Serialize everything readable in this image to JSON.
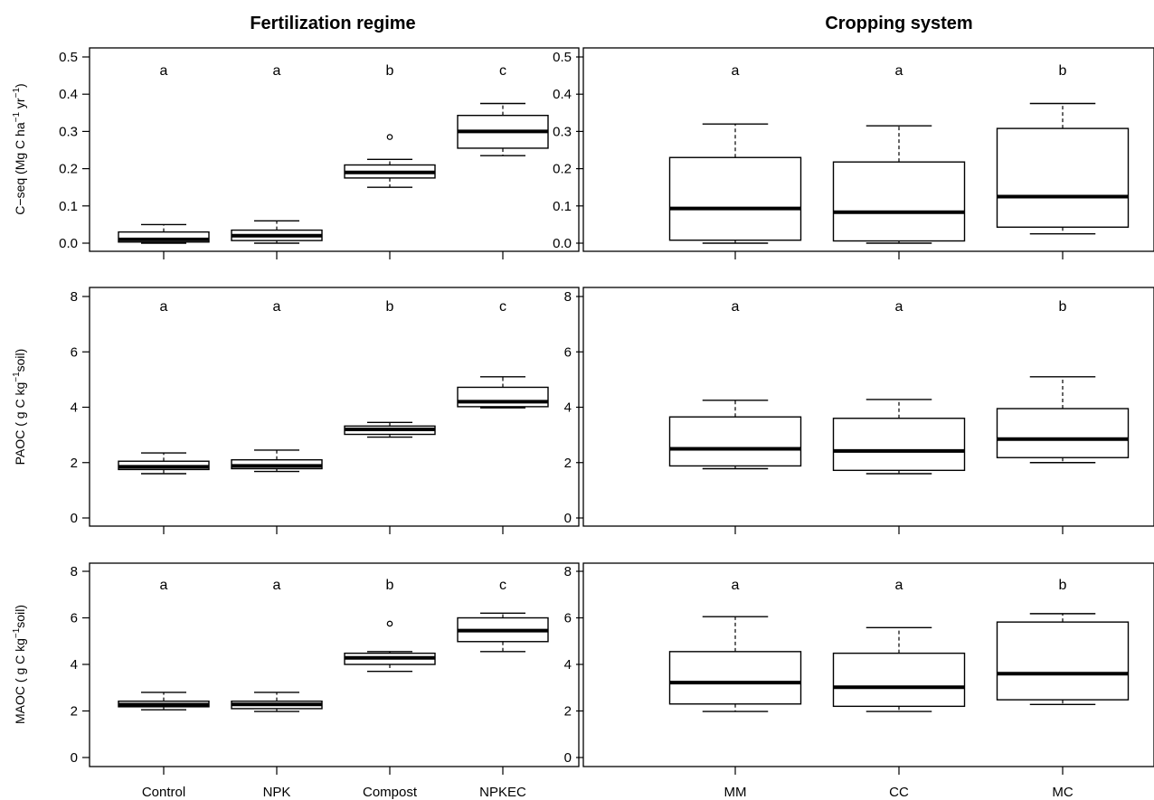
{
  "titles": {
    "left": "Fertilization regime",
    "right": "Cropping system"
  },
  "ylabels": {
    "cseq": {
      "main": "C−seq (Mg C ha",
      "sup1": "−1",
      "mid": " yr",
      "sup2": "−1",
      "end": ")"
    },
    "paoc": {
      "main": "PAOC ( g C kg",
      "sup1": "−1",
      "end": "soil)"
    },
    "maoc": {
      "main": "MAOC ( g C kg",
      "sup1": "−1",
      "end": "soil)"
    }
  },
  "chart_data": [
    {
      "type": "box",
      "id": "cseq-fert",
      "ylim": [
        0,
        0.5
      ],
      "yticks": [
        "0.0",
        "0.1",
        "0.2",
        "0.3",
        "0.4",
        "0.5"
      ],
      "categories": [
        "Control",
        "NPK",
        "Compost",
        "NPKEC"
      ],
      "letters": [
        "a",
        "a",
        "b",
        "c"
      ],
      "boxes": [
        {
          "min": 0.0,
          "q1": 0.003,
          "median": 0.01,
          "q3": 0.03,
          "max": 0.05
        },
        {
          "min": 0.0,
          "q1": 0.007,
          "median": 0.02,
          "q3": 0.035,
          "max": 0.06
        },
        {
          "min": 0.15,
          "q1": 0.175,
          "median": 0.19,
          "q3": 0.21,
          "max": 0.225,
          "outliers": [
            0.285
          ]
        },
        {
          "min": 0.235,
          "q1": 0.255,
          "median": 0.3,
          "q3": 0.343,
          "max": 0.375
        }
      ]
    },
    {
      "type": "box",
      "id": "cseq-crop",
      "ylim": [
        0,
        0.5
      ],
      "yticks": [
        "0.0",
        "0.1",
        "0.2",
        "0.3",
        "0.4",
        "0.5"
      ],
      "categories": [
        "MM",
        "CC",
        "MC"
      ],
      "letters": [
        "a",
        "a",
        "b"
      ],
      "boxes": [
        {
          "min": 0.0,
          "q1": 0.008,
          "median": 0.093,
          "q3": 0.23,
          "max": 0.32
        },
        {
          "min": 0.0,
          "q1": 0.006,
          "median": 0.083,
          "q3": 0.218,
          "max": 0.315
        },
        {
          "min": 0.025,
          "q1": 0.043,
          "median": 0.125,
          "q3": 0.308,
          "max": 0.375
        }
      ]
    },
    {
      "type": "box",
      "id": "paoc-fert",
      "ylim": [
        0,
        8
      ],
      "yticks": [
        "0",
        "2",
        "4",
        "6",
        "8"
      ],
      "categories": [
        "Control",
        "NPK",
        "Compost",
        "NPKEC"
      ],
      "letters": [
        "a",
        "a",
        "b",
        "c"
      ],
      "boxes": [
        {
          "min": 1.6,
          "q1": 1.75,
          "median": 1.85,
          "q3": 2.05,
          "max": 2.35
        },
        {
          "min": 1.68,
          "q1": 1.78,
          "median": 1.88,
          "q3": 2.1,
          "max": 2.45
        },
        {
          "min": 2.92,
          "q1": 3.02,
          "median": 3.2,
          "q3": 3.32,
          "max": 3.45
        },
        {
          "min": 3.98,
          "q1": 4.02,
          "median": 4.2,
          "q3": 4.72,
          "max": 5.1
        }
      ]
    },
    {
      "type": "box",
      "id": "paoc-crop",
      "ylim": [
        0,
        8
      ],
      "yticks": [
        "0",
        "2",
        "4",
        "6",
        "8"
      ],
      "categories": [
        "MM",
        "CC",
        "MC"
      ],
      "letters": [
        "a",
        "a",
        "b"
      ],
      "boxes": [
        {
          "min": 1.78,
          "q1": 1.88,
          "median": 2.5,
          "q3": 3.65,
          "max": 4.25
        },
        {
          "min": 1.6,
          "q1": 1.72,
          "median": 2.42,
          "q3": 3.6,
          "max": 4.28
        },
        {
          "min": 2.0,
          "q1": 2.18,
          "median": 2.85,
          "q3": 3.95,
          "max": 5.1
        }
      ]
    },
    {
      "type": "box",
      "id": "maoc-fert",
      "ylim": [
        0,
        8
      ],
      "yticks": [
        "0",
        "2",
        "4",
        "6",
        "8"
      ],
      "categories": [
        "Control",
        "NPK",
        "Compost",
        "NPKEC"
      ],
      "letters": [
        "a",
        "a",
        "b",
        "c"
      ],
      "boxes": [
        {
          "min": 2.05,
          "q1": 2.18,
          "median": 2.27,
          "q3": 2.42,
          "max": 2.8
        },
        {
          "min": 1.98,
          "q1": 2.1,
          "median": 2.28,
          "q3": 2.42,
          "max": 2.8
        },
        {
          "min": 3.7,
          "q1": 4.0,
          "median": 4.28,
          "q3": 4.48,
          "max": 4.55,
          "outliers": [
            5.75
          ]
        },
        {
          "min": 4.55,
          "q1": 4.98,
          "median": 5.45,
          "q3": 6.0,
          "max": 6.2
        }
      ]
    },
    {
      "type": "box",
      "id": "maoc-crop",
      "ylim": [
        0,
        8
      ],
      "yticks": [
        "0",
        "2",
        "4",
        "6",
        "8"
      ],
      "categories": [
        "MM",
        "CC",
        "MC"
      ],
      "letters": [
        "a",
        "a",
        "b"
      ],
      "boxes": [
        {
          "min": 1.98,
          "q1": 2.3,
          "median": 3.22,
          "q3": 4.55,
          "max": 6.05
        },
        {
          "min": 1.98,
          "q1": 2.2,
          "median": 3.02,
          "q3": 4.48,
          "max": 5.58
        },
        {
          "min": 2.28,
          "q1": 2.48,
          "median": 3.6,
          "q3": 5.82,
          "max": 6.18
        }
      ]
    }
  ]
}
